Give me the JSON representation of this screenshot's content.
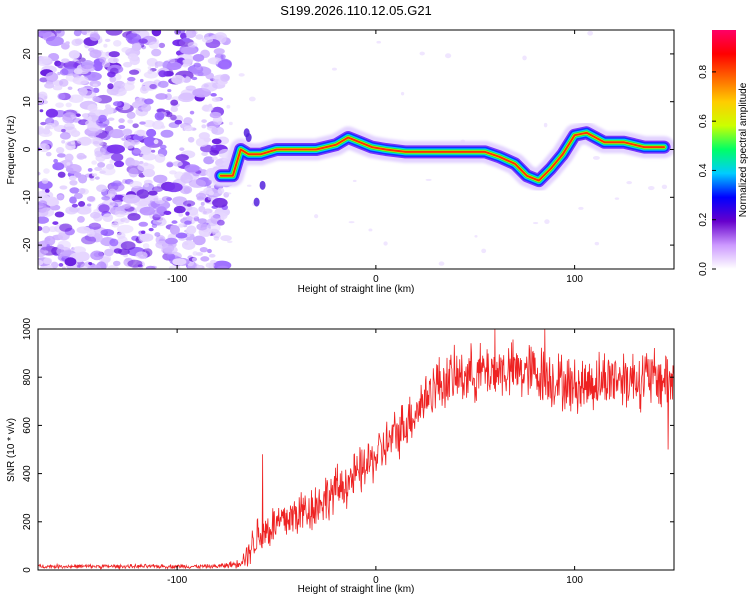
{
  "title": "S199.2026.110.12.05.G21",
  "chart_data": [
    {
      "type": "heatmap",
      "title": "S199.2026.110.12.05.G21",
      "xlabel": "Height of straight line (km)",
      "ylabel": "Frequency (Hz)",
      "xlim": [
        -170,
        150
      ],
      "ylim": [
        -25,
        25
      ],
      "x_ticks": [
        -100,
        0,
        100
      ],
      "y_ticks": [
        -20,
        -10,
        0,
        10,
        20
      ],
      "colorbar": {
        "label": "Normalized spectral amplitude",
        "range": [
          0,
          0.97
        ],
        "ticks": [
          0.0,
          0.2,
          0.4,
          0.6,
          0.8
        ],
        "colors": [
          "#ffffff",
          "#cc99ff",
          "#6600cc",
          "#0000ff",
          "#00ccff",
          "#00ff66",
          "#ccff00",
          "#ffcc00",
          "#ff6600",
          "#ff0000",
          "#ff0066"
        ]
      },
      "noise_region": {
        "x_min": -170,
        "x_max": -78
      },
      "ridge_track": {
        "x": [
          -78,
          -72,
          -68,
          -64,
          -58,
          -50,
          -40,
          -30,
          -20,
          -14,
          -8,
          -2,
          5,
          15,
          25,
          35,
          45,
          55,
          62,
          70,
          76,
          82,
          88,
          94,
          100,
          106,
          115,
          125,
          135,
          145
        ],
        "frequency": [
          -5.5,
          -5.5,
          0,
          -1,
          -1,
          0,
          0,
          0,
          1,
          2.5,
          1.5,
          0.5,
          0,
          -0.5,
          -0.5,
          -0.5,
          -0.5,
          -0.5,
          -1.5,
          -3,
          -5.5,
          -6.5,
          -4,
          -1,
          3,
          3.5,
          1.5,
          1.5,
          0.5,
          0.5
        ]
      }
    },
    {
      "type": "line",
      "xlabel": "Height of straight line (km)",
      "ylabel": "SNR (10 * v/v)",
      "xlim": [
        -170,
        150
      ],
      "ylim": [
        0,
        1000
      ],
      "x_ticks": [
        -100,
        0,
        100
      ],
      "y_ticks": [
        0,
        200,
        400,
        600,
        800,
        1000
      ],
      "color": "#ee2222",
      "envelope": {
        "x": [
          -170,
          -80,
          -70,
          -65,
          -60,
          -50,
          -40,
          -30,
          -20,
          -10,
          0,
          10,
          20,
          30,
          45,
          60,
          80,
          100,
          120,
          150
        ],
        "mean": [
          15,
          15,
          25,
          60,
          140,
          190,
          230,
          270,
          330,
          390,
          470,
          560,
          660,
          770,
          810,
          830,
          820,
          760,
          800,
          790
        ],
        "spread": [
          10,
          10,
          20,
          60,
          110,
          110,
          120,
          120,
          120,
          120,
          120,
          130,
          130,
          140,
          140,
          140,
          150,
          140,
          150,
          160
        ]
      },
      "spikes": [
        {
          "x": -57,
          "y": 480
        },
        {
          "x": 60,
          "y": 1000
        },
        {
          "x": 85,
          "y": 1000
        },
        {
          "x": 147,
          "y": 500
        }
      ]
    }
  ]
}
